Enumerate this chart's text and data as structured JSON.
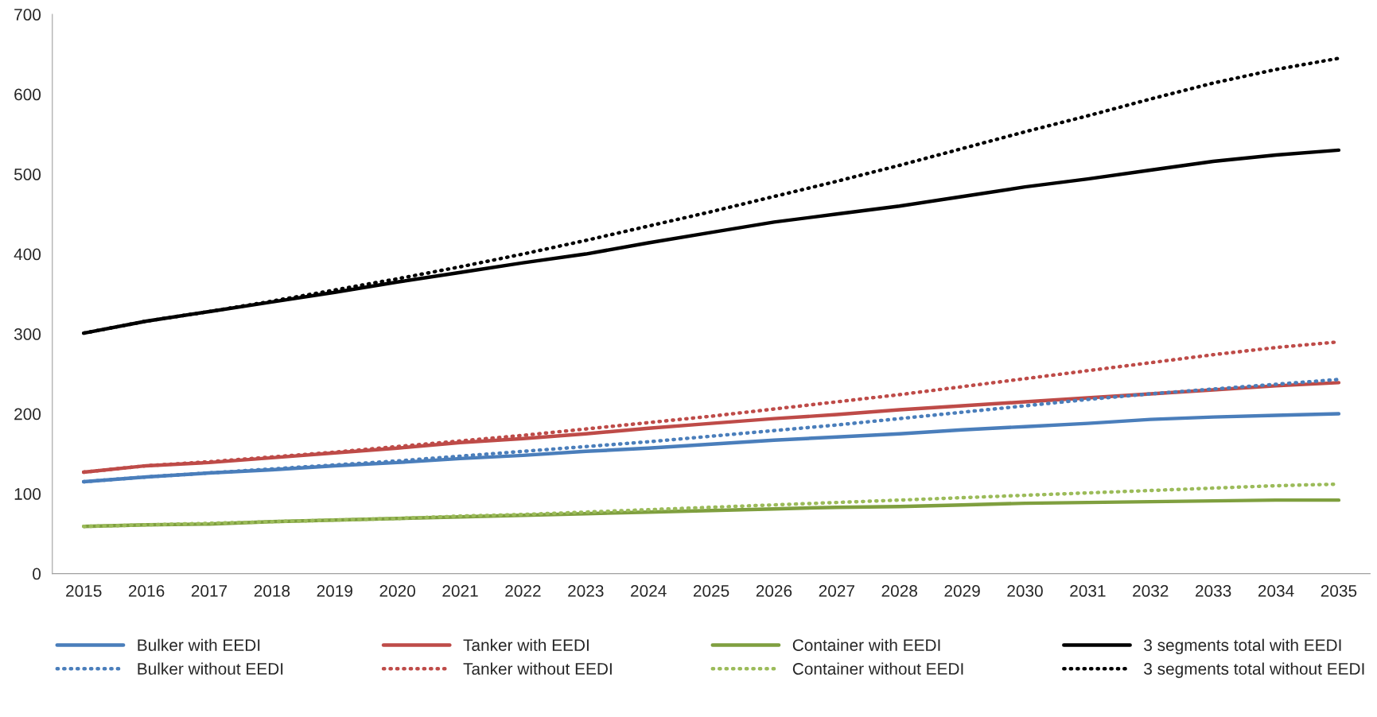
{
  "chart_data": {
    "type": "line",
    "categories": [
      "2015",
      "2016",
      "2017",
      "2018",
      "2019",
      "2020",
      "2021",
      "2022",
      "2023",
      "2024",
      "2025",
      "2026",
      "2027",
      "2028",
      "2029",
      "2030",
      "2031",
      "2032",
      "2033",
      "2034",
      "2035"
    ],
    "ylim": [
      0,
      700
    ],
    "yticks": [
      0,
      100,
      200,
      300,
      400,
      500,
      600,
      700
    ],
    "grid": false,
    "legend": "bottom",
    "marker": "none",
    "series": [
      {
        "name": "Bulker with EEDI",
        "color": "#4a7ebb",
        "line_style": "solid",
        "values": [
          115,
          121,
          126,
          130,
          135,
          139,
          144,
          148,
          153,
          157,
          162,
          167,
          171,
          175,
          180,
          184,
          188,
          193,
          196,
          198,
          200
        ]
      },
      {
        "name": "Tanker with EEDI",
        "color": "#be4b48",
        "line_style": "solid",
        "values": [
          127,
          135,
          139,
          145,
          151,
          157,
          164,
          169,
          175,
          182,
          188,
          194,
          199,
          205,
          210,
          215,
          220,
          225,
          230,
          235,
          239
        ]
      },
      {
        "name": "Container with EEDI",
        "color": "#7f9f3f",
        "line_style": "solid",
        "values": [
          59,
          61,
          62,
          65,
          67,
          69,
          71,
          73,
          75,
          77,
          79,
          81,
          83,
          84,
          86,
          88,
          89,
          90,
          91,
          92,
          92
        ]
      },
      {
        "name": "3 segments total with EEDI",
        "color": "#000000",
        "line_style": "solid",
        "values": [
          301,
          316,
          328,
          340,
          352,
          365,
          377,
          389,
          400,
          414,
          427,
          440,
          450,
          460,
          472,
          484,
          494,
          505,
          516,
          524,
          530
        ]
      },
      {
        "name": "Bulker without EEDI",
        "color": "#4a7ebb",
        "line_style": "dotted",
        "values": [
          115,
          121,
          126,
          131,
          136,
          141,
          147,
          153,
          159,
          165,
          172,
          179,
          186,
          194,
          202,
          210,
          218,
          225,
          231,
          237,
          243
        ]
      },
      {
        "name": "Tanker without EEDI",
        "color": "#be4b48",
        "line_style": "dotted",
        "values": [
          127,
          135,
          140,
          146,
          152,
          159,
          166,
          173,
          181,
          189,
          197,
          206,
          215,
          224,
          234,
          244,
          254,
          264,
          274,
          283,
          290
        ]
      },
      {
        "name": "Container without EEDI",
        "color": "#9bbb59",
        "line_style": "dotted",
        "values": [
          59,
          61,
          63,
          65,
          67,
          69,
          72,
          74,
          77,
          80,
          83,
          86,
          89,
          92,
          95,
          98,
          101,
          104,
          107,
          110,
          112
        ]
      },
      {
        "name": "3 segments total without EEDI",
        "color": "#000000",
        "line_style": "dotted",
        "values": [
          301,
          316,
          328,
          341,
          355,
          369,
          384,
          400,
          417,
          435,
          453,
          472,
          491,
          511,
          532,
          553,
          573,
          594,
          614,
          631,
          645
        ]
      }
    ]
  }
}
